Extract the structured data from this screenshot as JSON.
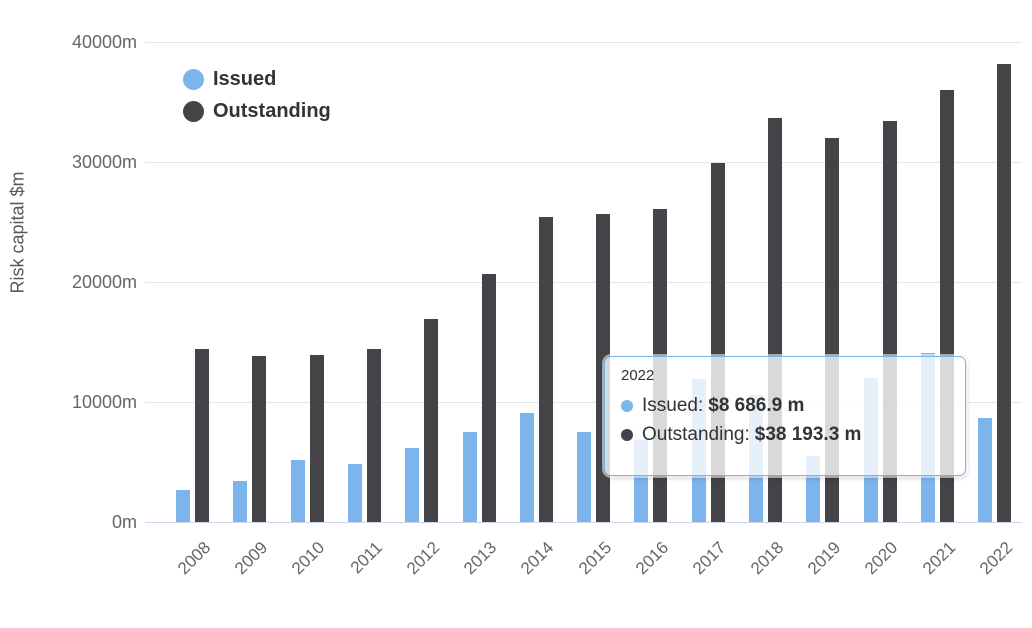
{
  "chart_data": {
    "type": "bar",
    "title": "",
    "xlabel": "",
    "ylabel": "Risk capital $m",
    "ylim": [
      0,
      40000
    ],
    "ytick_step": 10000,
    "ytick_suffix": "m",
    "grid": true,
    "legend_position": "top-left",
    "categories": [
      "2008",
      "2009",
      "2010",
      "2011",
      "2012",
      "2013",
      "2014",
      "2015",
      "2016",
      "2017",
      "2018",
      "2019",
      "2020",
      "2021",
      "2022"
    ],
    "series": [
      {
        "name": "Issued",
        "color": "#7cb5ec",
        "values": [
          2700,
          3400,
          5200,
          4800,
          6200,
          7500,
          9100,
          7500,
          6800,
          11900,
          10600,
          5500,
          12000,
          14100,
          8686.9
        ]
      },
      {
        "name": "Outstanding",
        "color": "#434348",
        "values": [
          14400,
          13800,
          13900,
          14400,
          16900,
          20700,
          25400,
          25700,
          26100,
          29900,
          33700,
          32000,
          33400,
          36000,
          38193.3
        ]
      }
    ]
  },
  "legend": {
    "items": [
      {
        "label": "Issued",
        "color": "#7cb5ec"
      },
      {
        "label": "Outstanding",
        "color": "#434348"
      }
    ]
  },
  "tooltip": {
    "title": "2022",
    "rows": [
      {
        "label": "Issued",
        "separator": ": ",
        "value": "$8 686.9 m",
        "color": "#7cb5ec"
      },
      {
        "label": "Outstanding",
        "separator": ": ",
        "value": "$38 193.3 m",
        "color": "#434348"
      }
    ]
  },
  "colors": {
    "grid": "#e6e6e6",
    "axis_line": "#ccd6eb",
    "tick_text": "#666666",
    "axis_title_text": "#54595f"
  }
}
